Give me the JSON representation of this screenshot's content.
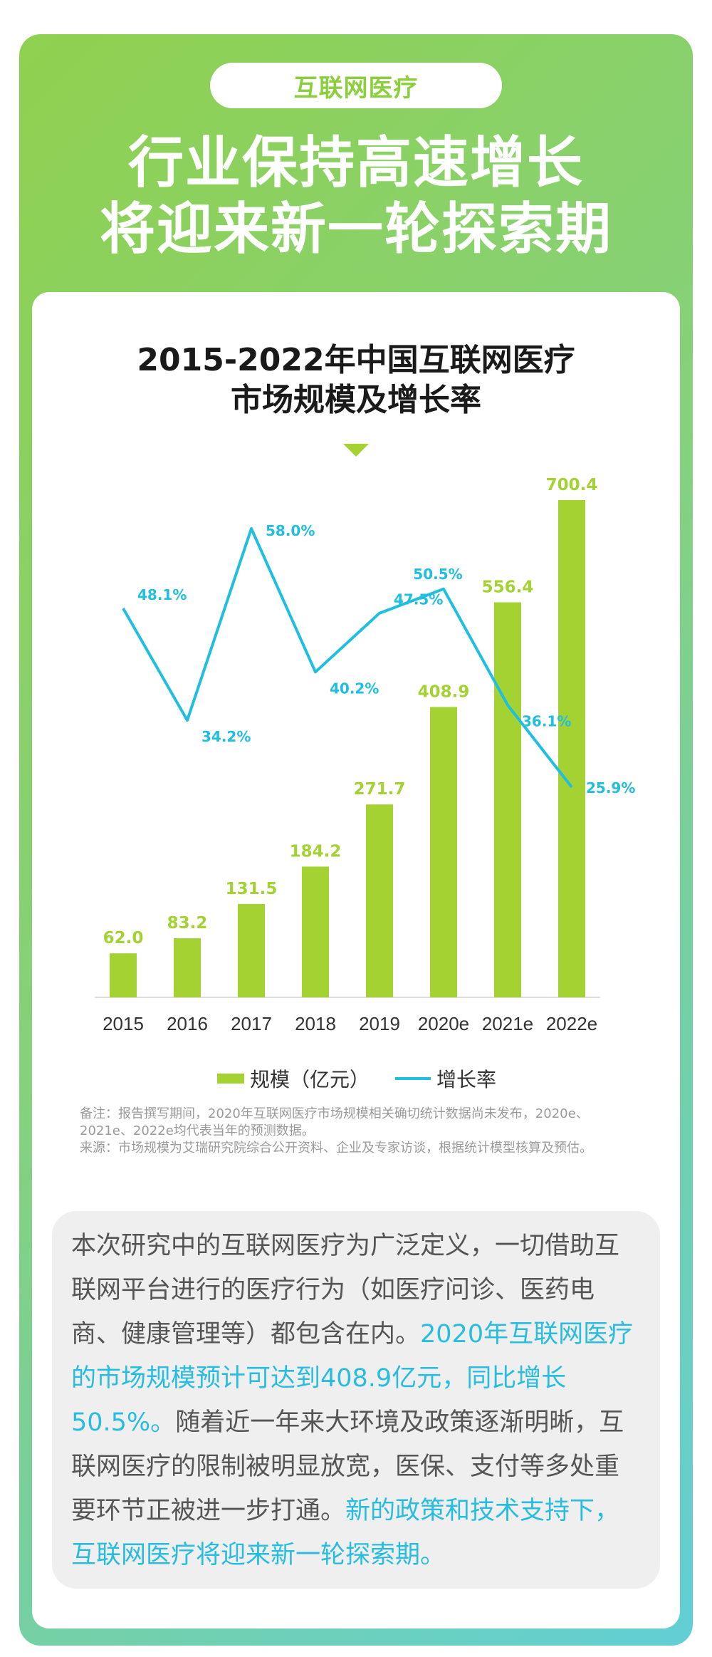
{
  "header": {
    "tag": "互联网医疗",
    "headline_line1": "行业保持高速增长",
    "headline_line2": "将迎来新一轮探索期"
  },
  "chart_data": {
    "type": "bar+line",
    "title": "2015-2022年中国互联网医疗市场规模及增长率",
    "title_line1": "2015-2022年中国互联网医疗",
    "title_line2": "市场规模及增长率",
    "categories": [
      "2015",
      "2016",
      "2017",
      "2018",
      "2019",
      "2020e",
      "2021e",
      "2022e"
    ],
    "series": [
      {
        "name": "规模（亿元）",
        "type": "bar",
        "values": [
          62.0,
          83.2,
          131.5,
          184.2,
          271.7,
          408.9,
          556.4,
          700.4
        ],
        "labels": [
          "62.0",
          "83.2",
          "131.5",
          "184.2",
          "271.7",
          "408.9",
          "556.4",
          "700.4"
        ]
      },
      {
        "name": "增长率",
        "type": "line",
        "values": [
          48.1,
          34.2,
          58.0,
          40.2,
          47.5,
          50.5,
          36.1,
          25.9
        ],
        "labels": [
          "48.1%",
          "34.2%",
          "58.0%",
          "40.2%",
          "47.5%",
          "50.5%",
          "36.1%",
          "25.9%"
        ]
      }
    ],
    "ylim_bar": [
      0,
      700.4
    ],
    "ylim_line": [
      25.9,
      58.0
    ],
    "legend_position": "bottom",
    "grid": false
  },
  "legend": {
    "bar_label": "规模（亿元）",
    "line_label": "增长率"
  },
  "notes": {
    "note": "备注：报告撰写期间，2020年互联网医疗市场规模相关确切统计数据尚未发布，2020e、2021e、2022e均代表当年的预测数据。",
    "source": "来源：市场规模为艾瑞研究院综合公开资料、企业及专家访谈，根据统计模型核算及预估。"
  },
  "description": {
    "part1": "本次研究中的互联网医疗为广泛定义，一切借助互联网平台进行的医疗行为（如医疗问诊、医药电商、健康管理等）都包含在内。",
    "highlight1": "2020年互联网医疗的市场规模预计可达到408.9亿元，同比增长50.5%。",
    "part2": "随着近一年来大环境及政策逐渐明晰，互联网医疗的限制被明显放宽，医保、支付等多处重要环节正被进一步打通。",
    "highlight2": "新的政策和技术支持下，互联网医疗将迎来新一轮探索期。"
  },
  "colors": {
    "bar": "#a4d233",
    "line": "#1fbfe0",
    "highlight": "#27bde0"
  }
}
